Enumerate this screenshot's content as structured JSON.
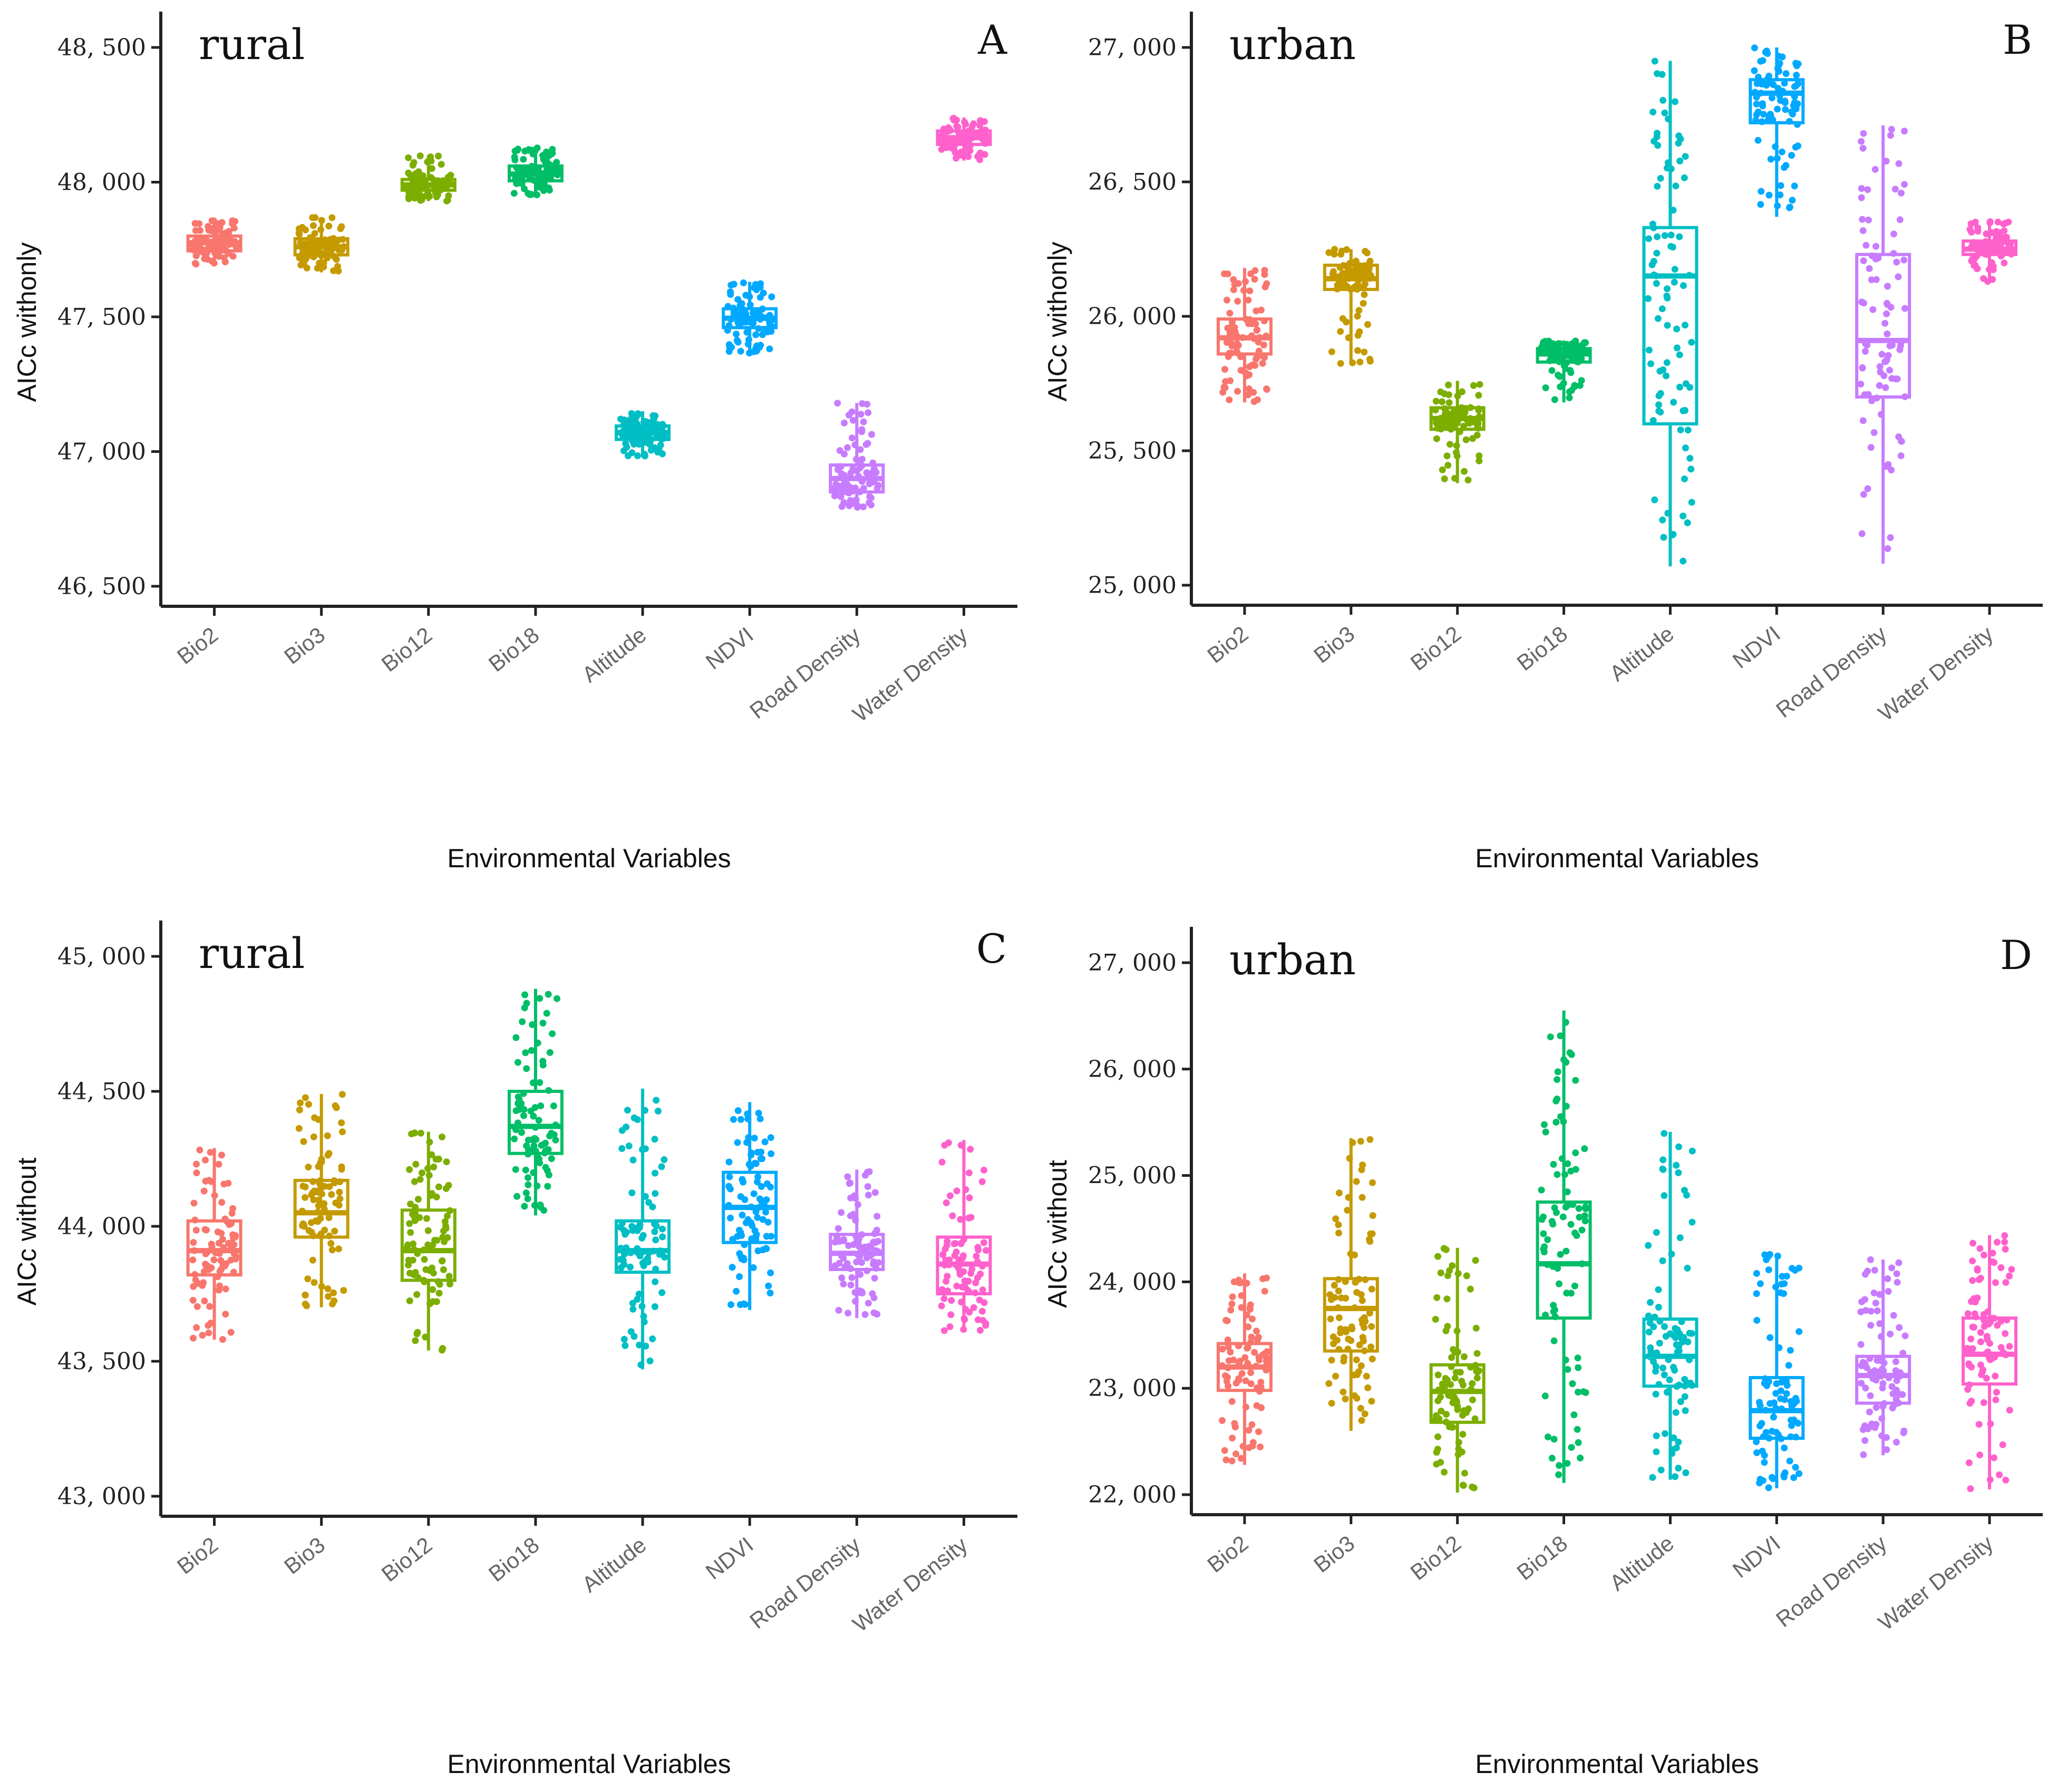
{
  "figure": {
    "palette": [
      "#F8766D",
      "#C49A00",
      "#7CAE00",
      "#00BE67",
      "#00BFC4",
      "#00A9FF",
      "#C77CFF",
      "#FF61CC"
    ]
  },
  "chart_data": [
    {
      "type": "box",
      "panel": "A",
      "label": "rural",
      "ylabel": "AICc withonly",
      "xlabel": "Environmental Variables",
      "ylim": [
        46500,
        48500
      ],
      "yticks": [
        46500,
        47000,
        47500,
        48000,
        48500
      ],
      "ytick_labels": [
        "46, 500",
        "47, 000",
        "47, 500",
        "48, 000",
        "48, 500"
      ],
      "categories": [
        "Bio2",
        "Bio3",
        "Bio12",
        "Bio18",
        "Altitude",
        "NDVI",
        "Road Density",
        "Water Density"
      ],
      "series": [
        {
          "name": "Bio2",
          "min": 47690,
          "q1": 47745,
          "median": 47775,
          "q3": 47800,
          "max": 47860
        },
        {
          "name": "Bio3",
          "min": 47665,
          "q1": 47730,
          "median": 47760,
          "q3": 47790,
          "max": 47870
        },
        {
          "name": "Bio12",
          "min": 47930,
          "q1": 47970,
          "median": 47990,
          "q3": 48010,
          "max": 48100
        },
        {
          "name": "Bio18",
          "min": 47950,
          "q1": 48005,
          "median": 48030,
          "q3": 48060,
          "max": 48130
        },
        {
          "name": "Altitude",
          "min": 46980,
          "q1": 47045,
          "median": 47070,
          "q3": 47095,
          "max": 47150
        },
        {
          "name": "NDVI",
          "min": 47360,
          "q1": 47460,
          "median": 47495,
          "q3": 47530,
          "max": 47630
        },
        {
          "name": "Road Density",
          "min": 46790,
          "q1": 46850,
          "median": 46900,
          "q3": 46950,
          "max": 47180
        },
        {
          "name": "Water Density",
          "min": 48080,
          "q1": 48140,
          "median": 48165,
          "q3": 48190,
          "max": 48240
        }
      ]
    },
    {
      "type": "box",
      "panel": "B",
      "label": "urban",
      "ylabel": "AICc withonly",
      "xlabel": "Environmental Variables",
      "ylim": [
        25000,
        27000
      ],
      "yticks": [
        25000,
        25500,
        26000,
        26500,
        27000
      ],
      "ytick_labels": [
        "25, 000",
        "25, 500",
        "26, 000",
        "26, 500",
        "27, 000"
      ],
      "categories": [
        "Bio2",
        "Bio3",
        "Bio12",
        "Bio18",
        "Altitude",
        "NDVI",
        "Road Density",
        "Water Density"
      ],
      "series": [
        {
          "name": "Bio2",
          "min": 25680,
          "q1": 25860,
          "median": 25920,
          "q3": 25990,
          "max": 26180
        },
        {
          "name": "Bio3",
          "min": 25820,
          "q1": 26100,
          "median": 26140,
          "q3": 26190,
          "max": 26250
        },
        {
          "name": "Bio12",
          "min": 25380,
          "q1": 25580,
          "median": 25620,
          "q3": 25660,
          "max": 25760
        },
        {
          "name": "Bio18",
          "min": 25680,
          "q1": 25830,
          "median": 25860,
          "q3": 25880,
          "max": 25910
        },
        {
          "name": "Altitude",
          "min": 25070,
          "q1": 25600,
          "median": 26150,
          "q3": 26330,
          "max": 26950
        },
        {
          "name": "NDVI",
          "min": 26370,
          "q1": 26720,
          "median": 26830,
          "q3": 26880,
          "max": 27000
        },
        {
          "name": "Road Density",
          "min": 25080,
          "q1": 25700,
          "median": 25910,
          "q3": 26230,
          "max": 26710
        },
        {
          "name": "Water Density",
          "min": 26130,
          "q1": 26230,
          "median": 26250,
          "q3": 26280,
          "max": 26360
        }
      ]
    },
    {
      "type": "box",
      "panel": "C",
      "label": "rural",
      "ylabel": "AICc without",
      "xlabel": "Environmental Variables",
      "ylim": [
        43000,
        45000
      ],
      "yticks": [
        43000,
        43500,
        44000,
        44500,
        45000
      ],
      "ytick_labels": [
        "43, 000",
        "43, 500",
        "44, 000",
        "44, 500",
        "45, 000"
      ],
      "categories": [
        "Bio2",
        "Bio3",
        "Bio12",
        "Bio18",
        "Altitude",
        "NDVI",
        "Road Density",
        "Water Density"
      ],
      "series": [
        {
          "name": "Bio2",
          "min": 43580,
          "q1": 43820,
          "median": 43910,
          "q3": 44020,
          "max": 44290
        },
        {
          "name": "Bio3",
          "min": 43700,
          "q1": 43960,
          "median": 44050,
          "q3": 44170,
          "max": 44490
        },
        {
          "name": "Bio12",
          "min": 43540,
          "q1": 43800,
          "median": 43910,
          "q3": 44060,
          "max": 44350
        },
        {
          "name": "Bio18",
          "min": 44040,
          "q1": 44270,
          "median": 44370,
          "q3": 44500,
          "max": 44880
        },
        {
          "name": "Altitude",
          "min": 43470,
          "q1": 43830,
          "median": 43910,
          "q3": 44020,
          "max": 44510
        },
        {
          "name": "NDVI",
          "min": 43690,
          "q1": 43940,
          "median": 44070,
          "q3": 44200,
          "max": 44460
        },
        {
          "name": "Road Density",
          "min": 43660,
          "q1": 43840,
          "median": 43900,
          "q3": 43970,
          "max": 44210
        },
        {
          "name": "Water Density",
          "min": 43610,
          "q1": 43750,
          "median": 43860,
          "q3": 43960,
          "max": 44320
        }
      ]
    },
    {
      "type": "box",
      "panel": "D",
      "label": "urban",
      "ylabel": "AICc without",
      "xlabel": "Environmental Variables",
      "ylim": [
        22000,
        27000
      ],
      "yticks": [
        22000,
        23000,
        24000,
        25000,
        26000,
        27000
      ],
      "ytick_labels": [
        "22, 000",
        "23, 000",
        "24, 000",
        "25, 000",
        "26, 000",
        "27, 000"
      ],
      "categories": [
        "Bio2",
        "Bio3",
        "Bio12",
        "Bio18",
        "Altitude",
        "NDVI",
        "Road Density",
        "Water Density"
      ],
      "series": [
        {
          "name": "Bio2",
          "min": 22280,
          "q1": 22980,
          "median": 23200,
          "q3": 23420,
          "max": 24080
        },
        {
          "name": "Bio3",
          "min": 22600,
          "q1": 23350,
          "median": 23750,
          "q3": 24030,
          "max": 25350
        },
        {
          "name": "Bio12",
          "min": 22020,
          "q1": 22680,
          "median": 22970,
          "q3": 23220,
          "max": 24320
        },
        {
          "name": "Bio18",
          "min": 22110,
          "q1": 23660,
          "median": 24170,
          "q3": 24750,
          "max": 26550
        },
        {
          "name": "Altitude",
          "min": 22140,
          "q1": 23020,
          "median": 23300,
          "q3": 23650,
          "max": 25410
        },
        {
          "name": "NDVI",
          "min": 22060,
          "q1": 22530,
          "median": 22790,
          "q3": 23100,
          "max": 24260
        },
        {
          "name": "Road Density",
          "min": 22370,
          "q1": 22860,
          "median": 23120,
          "q3": 23300,
          "max": 24210
        },
        {
          "name": "Water Density",
          "min": 22050,
          "q1": 23040,
          "median": 23320,
          "q3": 23660,
          "max": 24440
        }
      ]
    }
  ]
}
